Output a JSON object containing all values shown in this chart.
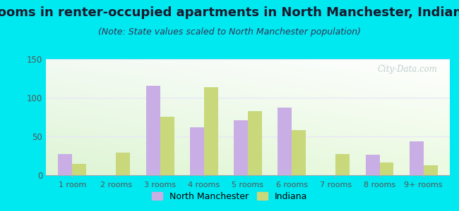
{
  "title": "Rooms in renter-occupied apartments in North Manchester, Indiana",
  "subtitle": "(Note: State values scaled to North Manchester population)",
  "categories": [
    "1 room",
    "2 rooms",
    "3 rooms",
    "4 rooms",
    "5 rooms",
    "6 rooms",
    "7 rooms",
    "8 rooms",
    "9+ rooms"
  ],
  "north_manchester": [
    27,
    0,
    115,
    62,
    71,
    87,
    0,
    26,
    44
  ],
  "indiana": [
    15,
    29,
    75,
    114,
    83,
    58,
    27,
    16,
    13
  ],
  "nm_color": "#c9aee5",
  "in_color": "#c8d87a",
  "background_outer": "#00e8f0",
  "ylim": [
    0,
    150
  ],
  "yticks": [
    0,
    50,
    100,
    150
  ],
  "title_fontsize": 13,
  "subtitle_fontsize": 9,
  "watermark": "City-Data.com",
  "watermark_color": "#b8c8c8",
  "grid_color": "#e8e8f8",
  "tick_label_color": "#555555"
}
